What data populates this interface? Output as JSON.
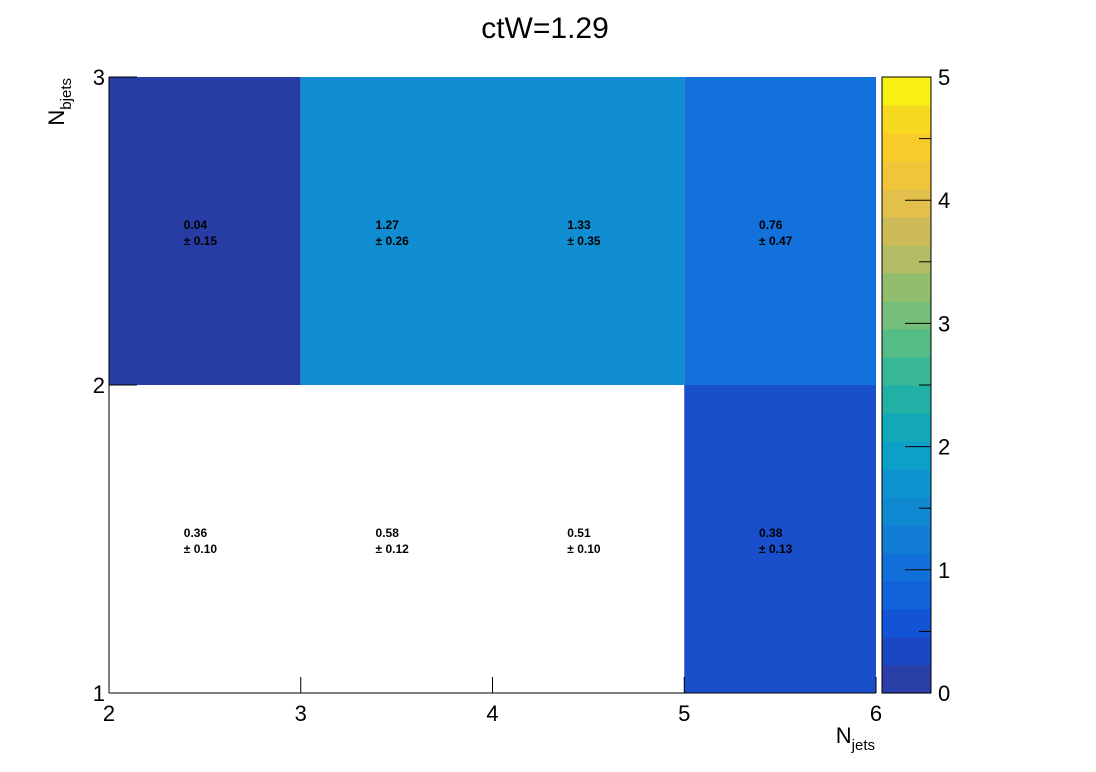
{
  "chart_data": {
    "type": "heatmap",
    "title": "ctW=1.29",
    "xlabel": {
      "main": "N",
      "sub": "jets"
    },
    "ylabel": {
      "main": "N",
      "sub": "bjets"
    },
    "x_edges": [
      2,
      3,
      4,
      5,
      6
    ],
    "y_edges": [
      1,
      2,
      3
    ],
    "x_ticks": [
      "2",
      "3",
      "4",
      "5",
      "6"
    ],
    "y_ticks": [
      "1",
      "2",
      "3"
    ],
    "xlim": [
      2,
      6
    ],
    "ylim": [
      1,
      3
    ],
    "zlim": [
      0,
      5
    ],
    "z_ticks": [
      "0",
      "1",
      "2",
      "3",
      "4",
      "5"
    ],
    "palette": [
      "#2a3ea8",
      "#1c47c2",
      "#1354d6",
      "#1262da",
      "#1270da",
      "#117dd5",
      "#0f89d2",
      "#0d94d0",
      "#0ca0c8",
      "#12a8b8",
      "#20b0a6",
      "#38b896",
      "#55bc87",
      "#74be7a",
      "#93bd6e",
      "#b1bc64",
      "#cdbb5a",
      "#e2c04b",
      "#f0c53a",
      "#f7cc2a",
      "#f7da1f",
      "#f8f010"
    ],
    "cells": [
      {
        "x": 2,
        "y": 1,
        "value": "0.36",
        "error": "± 0.10",
        "z": 0.36
      },
      {
        "x": 3,
        "y": 1,
        "value": "0.58",
        "error": "± 0.12",
        "z": 0.58
      },
      {
        "x": 4,
        "y": 1,
        "value": "0.51",
        "error": "± 0.10",
        "z": 0.51
      },
      {
        "x": 5,
        "y": 1,
        "value": "0.38",
        "error": "± 0.13",
        "z": 0.38
      },
      {
        "x": 2,
        "y": 2,
        "value": "0.04",
        "error": "± 0.15",
        "z": 0.04
      },
      {
        "x": 3,
        "y": 2,
        "value": "1.27",
        "error": "± 0.26",
        "z": 1.27
      },
      {
        "x": 4,
        "y": 2,
        "value": "1.33",
        "error": "± 0.35",
        "z": 1.33
      },
      {
        "x": 5,
        "y": 2,
        "value": "0.76",
        "error": "± 0.47",
        "z": 0.76
      }
    ],
    "cell_colors": {
      "2,1": "#ffffff",
      "3,1": "#ffffff",
      "4,1": "#ffffff",
      "5,1": "#1a4fcc",
      "2,2": "#283ca6",
      "3,2": "#118ed2",
      "4,2": "#118ed2",
      "5,2": "#1371db"
    },
    "grid": false,
    "legend": "colorbar-right"
  }
}
